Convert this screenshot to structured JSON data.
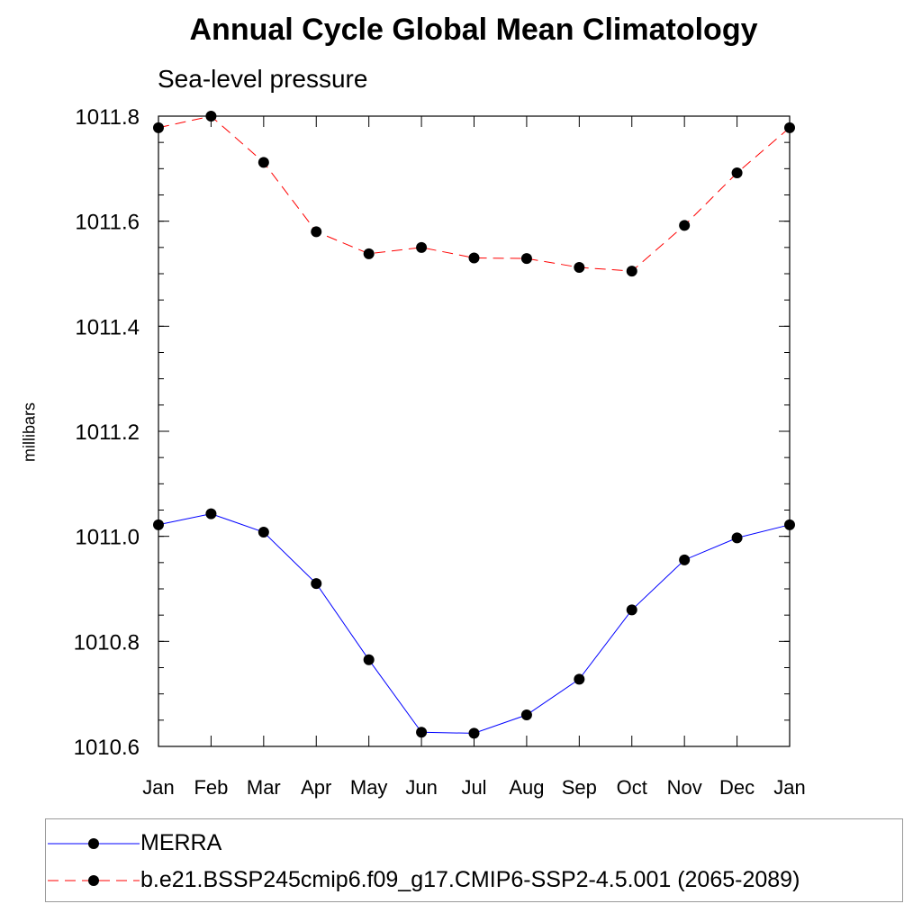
{
  "chart_data": {
    "type": "line",
    "title": "Annual Cycle Global Mean Climatology",
    "subtitle": "Sea-level pressure",
    "ylabel": "millibars",
    "xlabel": "",
    "categories": [
      "Jan",
      "Feb",
      "Mar",
      "Apr",
      "May",
      "Jun",
      "Jul",
      "Aug",
      "Sep",
      "Oct",
      "Nov",
      "Dec",
      "Jan"
    ],
    "ylim": [
      1010.6,
      1011.8
    ],
    "yticks": [
      1010.6,
      1010.8,
      1011.0,
      1011.2,
      1011.4,
      1011.6,
      1011.8
    ],
    "ytick_labels": [
      "1010.6",
      "1010.8",
      "1011.0",
      "1011.2",
      "1011.4",
      "1011.6",
      "1011.8"
    ],
    "series": [
      {
        "name": "MERRA",
        "color": "#0000ff",
        "dash": "solid",
        "values": [
          1011.022,
          1011.043,
          1011.008,
          1010.91,
          1010.765,
          1010.627,
          1010.625,
          1010.66,
          1010.728,
          1010.86,
          1010.955,
          1010.997,
          1011.022
        ]
      },
      {
        "name": "b.e21.BSSP245cmip6.f09_g17.CMIP6-SSP2-4.5.001 (2065-2089)",
        "color": "#ff0000",
        "dash": "dashed",
        "values": [
          1011.778,
          1011.8,
          1011.712,
          1011.58,
          1011.538,
          1011.55,
          1011.53,
          1011.529,
          1011.512,
          1011.505,
          1011.592,
          1011.692,
          1011.778
        ]
      }
    ],
    "grid": false,
    "legend": "bottom"
  }
}
